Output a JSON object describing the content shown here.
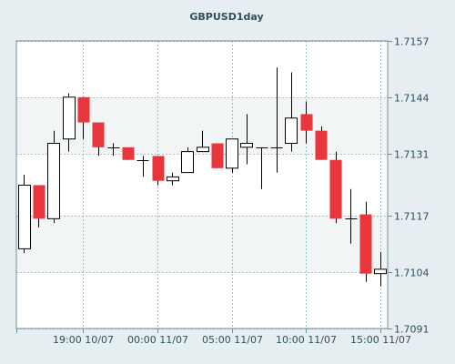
{
  "chart_data": {
    "type": "candlestick",
    "title": "GBPUSD1day",
    "y_ticks": [
      "1.7157",
      "1.7144",
      "1.7131",
      "1.7117",
      "1.7104",
      "1.7091"
    ],
    "y_tick_values": [
      1.7157,
      1.7144,
      1.7131,
      1.7117,
      1.7104,
      1.7091
    ],
    "ylim": [
      1.7091,
      1.7157
    ],
    "x_ticks": [
      "19:00 10/07",
      "00:00 11/07",
      "05:00 11/07",
      "10:00 11/07",
      "15:00 11/07"
    ],
    "x_tick_candle_index": [
      4.5,
      9.5,
      14.5,
      19.5,
      24.5
    ],
    "grid": true,
    "colors": {
      "up_fill": "#ffffff",
      "down_fill": "#e8363d",
      "outline": "#000000",
      "grid": "#8fc7cf",
      "band": "#ffffff",
      "plot_bg": "#f2f5f6",
      "page_bg": "#e6eef2"
    },
    "candles": [
      {
        "open": 1.71093,
        "high": 1.71263,
        "low": 1.71083,
        "close": 1.71239
      },
      {
        "open": 1.71239,
        "high": 1.71239,
        "low": 1.71142,
        "close": 1.71162
      },
      {
        "open": 1.71162,
        "high": 1.71364,
        "low": 1.71152,
        "close": 1.71335
      },
      {
        "open": 1.71345,
        "high": 1.7145,
        "low": 1.71316,
        "close": 1.71441
      },
      {
        "open": 1.71441,
        "high": 1.71441,
        "low": 1.71345,
        "close": 1.71383
      },
      {
        "open": 1.71383,
        "high": 1.71383,
        "low": 1.71306,
        "close": 1.71326
      },
      {
        "open": 1.71326,
        "high": 1.71335,
        "low": 1.71306,
        "close": 1.71326
      },
      {
        "open": 1.71326,
        "high": 1.71326,
        "low": 1.71297,
        "close": 1.71297
      },
      {
        "open": 1.71297,
        "high": 1.71306,
        "low": 1.71258,
        "close": 1.71297
      },
      {
        "open": 1.71306,
        "high": 1.71306,
        "low": 1.71239,
        "close": 1.71249
      },
      {
        "open": 1.71249,
        "high": 1.71268,
        "low": 1.71239,
        "close": 1.71258
      },
      {
        "open": 1.71268,
        "high": 1.71326,
        "low": 1.71268,
        "close": 1.71316
      },
      {
        "open": 1.71316,
        "high": 1.71364,
        "low": 1.71316,
        "close": 1.71326
      },
      {
        "open": 1.71335,
        "high": 1.71335,
        "low": 1.71278,
        "close": 1.71278
      },
      {
        "open": 1.71278,
        "high": 1.71345,
        "low": 1.71268,
        "close": 1.71345
      },
      {
        "open": 1.71326,
        "high": 1.71402,
        "low": 1.71287,
        "close": 1.71335
      },
      {
        "open": 1.71326,
        "high": 1.71326,
        "low": 1.7123,
        "close": 1.71326
      },
      {
        "open": 1.71326,
        "high": 1.71509,
        "low": 1.71268,
        "close": 1.71326
      },
      {
        "open": 1.71335,
        "high": 1.71498,
        "low": 1.71316,
        "close": 1.71393
      },
      {
        "open": 1.71402,
        "high": 1.71431,
        "low": 1.71335,
        "close": 1.71364
      },
      {
        "open": 1.71364,
        "high": 1.71374,
        "low": 1.71297,
        "close": 1.71297
      },
      {
        "open": 1.71297,
        "high": 1.71316,
        "low": 1.71152,
        "close": 1.71162
      },
      {
        "open": 1.71162,
        "high": 1.7123,
        "low": 1.71105,
        "close": 1.71162
      },
      {
        "open": 1.71172,
        "high": 1.71201,
        "low": 1.71017,
        "close": 1.71036
      },
      {
        "open": 1.71036,
        "high": 1.71086,
        "low": 1.71007,
        "close": 1.71046
      }
    ]
  }
}
